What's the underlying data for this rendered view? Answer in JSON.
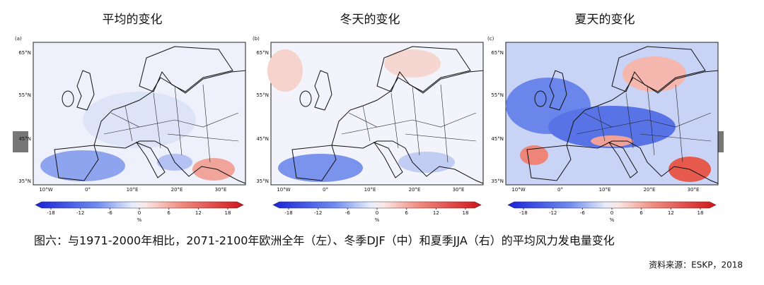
{
  "panels": [
    {
      "title": "平均的变化",
      "label": "(a)"
    },
    {
      "title": "冬天的变化",
      "label": "(b)"
    },
    {
      "title": "夏天的变化",
      "label": "(c)"
    }
  ],
  "map_axes": {
    "lat_labels": [
      "65°N",
      "55°N",
      "45°N",
      "35°N"
    ],
    "lon_labels": [
      "10°W",
      "0°",
      "10°E",
      "20°E",
      "30°E"
    ]
  },
  "colorbar": {
    "ticks": [
      -18,
      -12,
      -6,
      0,
      6,
      12,
      18
    ],
    "unit": "%"
  },
  "caption": "图六：与1971-2000年相比，2071-2100年欧洲全年（左）、冬季DJF（中）和夏季JJA（右）的平均风力发电量变化",
  "source": "资料来源：ESKP，2018"
}
